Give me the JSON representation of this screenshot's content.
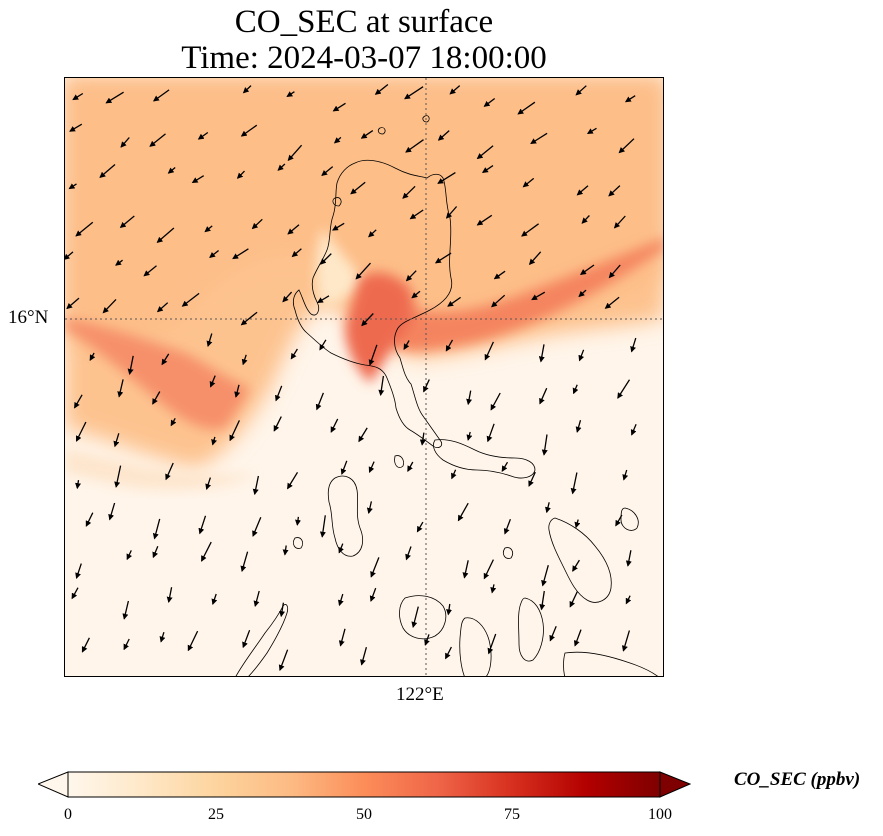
{
  "title": {
    "line1": "CO_SEC at surface",
    "line2": "Time: 2024-03-07 18:00:00"
  },
  "axes": {
    "lat_label": "16°N",
    "lon_label": "122°E"
  },
  "colorbar": {
    "label": "CO_SEC (ppbv)",
    "ticks": [
      "0",
      "25",
      "50",
      "75",
      "100"
    ],
    "range": [
      0,
      100
    ],
    "colormap": "OrRd",
    "colors": [
      "#fff7ec",
      "#fee8c8",
      "#fdd49e",
      "#fdbb84",
      "#fc8d59",
      "#ef6548",
      "#d7301f",
      "#b30000",
      "#7f0000"
    ],
    "extend": "both"
  },
  "map": {
    "region": "Northern Philippines (Luzon)",
    "gridlines": "dotted",
    "wind_vectors": true
  }
}
